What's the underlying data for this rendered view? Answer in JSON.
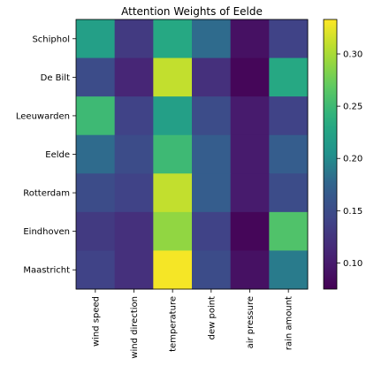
{
  "chart_data": {
    "type": "heatmap",
    "title": "Attention Weights of Eelde",
    "xlabel": "",
    "ylabel": "",
    "rows": [
      "Schiphol",
      "De Bilt",
      "Leeuwarden",
      "Eelde",
      "Rotterdam",
      "Eindhoven",
      "Maastricht"
    ],
    "columns": [
      "wind speed",
      "wind direction",
      "temperature",
      "dew point",
      "air pressure",
      "rain amount"
    ],
    "values": [
      [
        0.22,
        0.13,
        0.23,
        0.18,
        0.09,
        0.14
      ],
      [
        0.15,
        0.11,
        0.31,
        0.12,
        0.08,
        0.23
      ],
      [
        0.25,
        0.14,
        0.22,
        0.15,
        0.1,
        0.14
      ],
      [
        0.18,
        0.15,
        0.25,
        0.17,
        0.1,
        0.17
      ],
      [
        0.15,
        0.14,
        0.31,
        0.17,
        0.1,
        0.15
      ],
      [
        0.13,
        0.12,
        0.29,
        0.14,
        0.08,
        0.26
      ],
      [
        0.14,
        0.12,
        0.33,
        0.15,
        0.09,
        0.19
      ]
    ],
    "colormap": "viridis",
    "vmin": 0.075,
    "vmax": 0.333,
    "colorbar_ticks": [
      "0.10",
      "0.15",
      "0.20",
      "0.25",
      "0.30"
    ],
    "colorbar_tick_values": [
      0.1,
      0.15,
      0.2,
      0.25,
      0.3
    ],
    "grid": false,
    "legend": "colorbar-right"
  }
}
